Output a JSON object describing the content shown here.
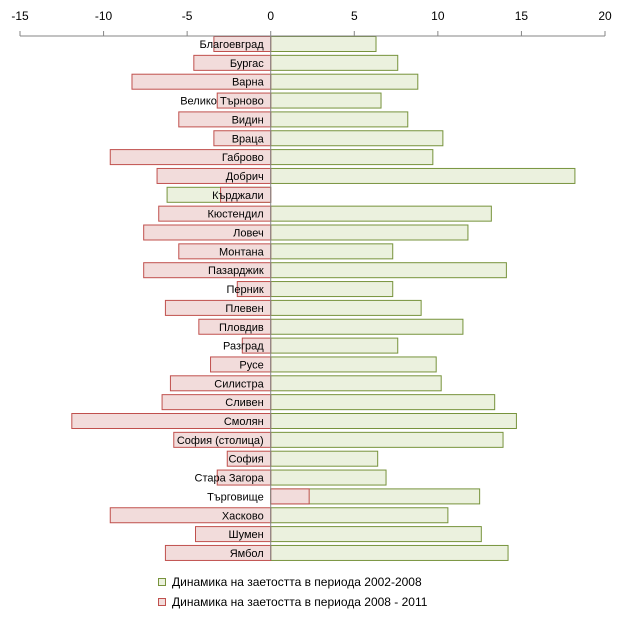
{
  "chart_data": {
    "type": "bar",
    "orientation": "horizontal",
    "title": "",
    "xlim": [
      -15,
      20
    ],
    "xticks": [
      "-15",
      "-10",
      "-5",
      "0",
      "5",
      "10",
      "15",
      "20"
    ],
    "xtick_values": [
      -15,
      -10,
      -5,
      0,
      5,
      10,
      15,
      20
    ],
    "axis_position": "top",
    "grid": false,
    "legend_position": "bottom",
    "categories": [
      "Благоевград",
      "Бургас",
      "Варна",
      "Велико Търново",
      "Видин",
      "Враца",
      "Габрово",
      "Добрич",
      "Кърджали",
      "Кюстендил",
      "Ловеч",
      "Монтана",
      "Пазарджик",
      "Перник",
      "Плевен",
      "Пловдив",
      "Разград",
      "Русе",
      "Силистра",
      "Сливен",
      "Смолян",
      "София (столица)",
      "София",
      "Стара Загора",
      "Търговище",
      "Хасково",
      "Шумен",
      "Ямбол"
    ],
    "series": [
      {
        "name": "Динамика на заетостта в периода 2002-2008",
        "color": "#ebf1de",
        "stroke": "#77933c",
        "values": [
          6.3,
          7.6,
          8.8,
          6.6,
          8.2,
          10.3,
          9.7,
          18.2,
          -6.2,
          13.2,
          11.8,
          7.3,
          14.1,
          7.3,
          9.0,
          11.5,
          7.6,
          9.9,
          10.2,
          13.4,
          14.7,
          13.9,
          6.4,
          6.9,
          12.5,
          10.6,
          12.6,
          14.2
        ]
      },
      {
        "name": "Динамика на заетостта в периода 2008 - 2011",
        "color": "#f2dcdb",
        "stroke": "#c0504d",
        "values": [
          -3.4,
          -4.6,
          -8.3,
          -3.2,
          -5.5,
          -3.4,
          -9.6,
          -6.8,
          -3.0,
          -6.7,
          -7.6,
          -5.5,
          -7.6,
          -2.0,
          -6.3,
          -4.3,
          -1.7,
          -3.6,
          -6.0,
          -6.5,
          -11.9,
          -5.8,
          -2.6,
          -3.2,
          2.3,
          -9.6,
          -4.5,
          -6.3
        ]
      }
    ]
  }
}
